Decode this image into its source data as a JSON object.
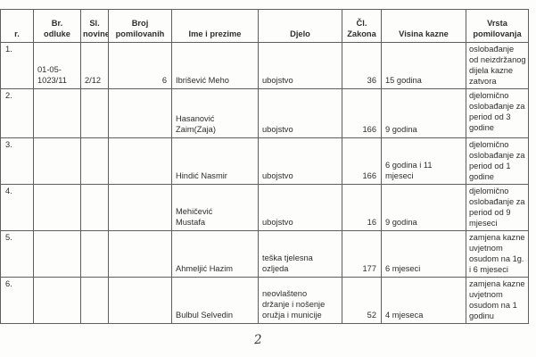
{
  "page": {
    "page_number": "2"
  },
  "table": {
    "headers": [
      {
        "key": "rbr",
        "label": "r."
      },
      {
        "key": "br_odluke",
        "label": "Br.\nodluke"
      },
      {
        "key": "sl_novine",
        "label": "Sl.\nnovine"
      },
      {
        "key": "broj_pomilovanih",
        "label": "Broj\npomilovanih"
      },
      {
        "key": "ime",
        "label": "Ime i prezime"
      },
      {
        "key": "djelo",
        "label": "Djelo"
      },
      {
        "key": "cl_zakona",
        "label": "Čl.\nZakona"
      },
      {
        "key": "visina_kazne",
        "label": "Visina kazne"
      },
      {
        "key": "vrsta",
        "label": "Vrsta\npomilovanja"
      }
    ],
    "rows": [
      {
        "rbr": "1.",
        "br_odluke": "01-05-\n1023/11",
        "sl_novine": "2/12",
        "broj_pomilovanih": "6",
        "ime": "Ibrišević Meho",
        "djelo": "ubojstvo",
        "cl_zakona": "36",
        "visina_kazne": "15 godina",
        "vrsta": "oslobađanje\nod neizdržanog\ndijela kazne\nzatvora"
      },
      {
        "rbr": "2.",
        "br_odluke": "",
        "sl_novine": "",
        "broj_pomilovanih": "",
        "ime": "Hasanović\nZaim(Zaja)",
        "djelo": "ubojstvo",
        "cl_zakona": "166",
        "visina_kazne": "9 godina",
        "vrsta": "djelomično\noslobađanje za\nperiod od 3\ngodine"
      },
      {
        "rbr": "3.",
        "br_odluke": "",
        "sl_novine": "",
        "broj_pomilovanih": "",
        "ime": "Hindić Nasmir",
        "djelo": "ubojstvo",
        "cl_zakona": "166",
        "visina_kazne": "6 godina i 11\nmjeseci",
        "vrsta": "djelomično\noslobađanje za\nperiod od 1\ngodine"
      },
      {
        "rbr": "4.",
        "br_odluke": "",
        "sl_novine": "",
        "broj_pomilovanih": "",
        "ime": "Mehičević\nMustafa",
        "djelo": "ubojstvo",
        "cl_zakona": "16",
        "visina_kazne": "9 godina",
        "vrsta": "djelomično\noslobađanje za\nperiod od 9\nmjeseci"
      },
      {
        "rbr": "5.",
        "br_odluke": "",
        "sl_novine": "",
        "broj_pomilovanih": "",
        "ime": "Ahmeljić Hazim",
        "djelo": "teška tjelesna\nozljeda",
        "cl_zakona": "177",
        "visina_kazne": "6 mjeseci",
        "vrsta": "zamjena kazne\nuvjetnom\nosudom na 1g.\ni 6 mjeseci"
      },
      {
        "rbr": "6.",
        "br_odluke": "",
        "sl_novine": "",
        "broj_pomilovanih": "",
        "ime": "Bulbul Selvedin",
        "djelo": "neovlašteno\ndržanje i nošenje\noružja i municije",
        "cl_zakona": "52",
        "visina_kazne": "4 mjeseca",
        "vrsta": "zamjena kazne\nuvjetnom\nosudom na 1\ngodinu"
      }
    ]
  }
}
